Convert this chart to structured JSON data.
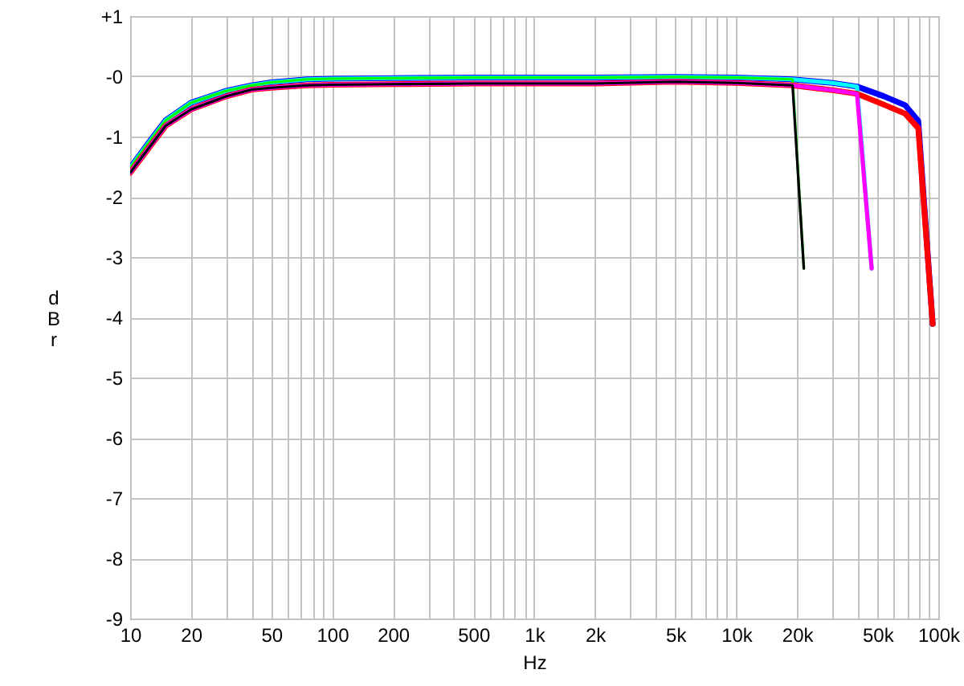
{
  "chart_data": {
    "type": "line",
    "xlabel": "Hz",
    "ylabel": "dBr",
    "log": "x",
    "grid": true,
    "xlim": [
      10,
      100000
    ],
    "ylim": [
      -9,
      1
    ],
    "xticks": [
      10,
      20,
      {
        "value": 30,
        "label": null
      },
      {
        "value": 40,
        "label": null
      },
      50,
      {
        "value": 60,
        "label": null
      },
      {
        "value": 70,
        "label": null
      },
      {
        "value": 80,
        "label": null
      },
      {
        "value": 90,
        "label": null
      },
      100,
      200,
      {
        "value": 300,
        "label": null
      },
      {
        "value": 400,
        "label": null
      },
      500,
      {
        "value": 600,
        "label": null
      },
      {
        "value": 700,
        "label": null
      },
      {
        "value": 800,
        "label": null
      },
      {
        "value": 900,
        "label": null
      },
      {
        "value": 1000,
        "label": "1k"
      },
      {
        "value": 2000,
        "label": "2k"
      },
      {
        "value": 3000,
        "label": null
      },
      {
        "value": 4000,
        "label": null
      },
      {
        "value": 5000,
        "label": "5k"
      },
      {
        "value": 6000,
        "label": null
      },
      {
        "value": 7000,
        "label": null
      },
      {
        "value": 8000,
        "label": null
      },
      {
        "value": 9000,
        "label": null
      },
      {
        "value": 10000,
        "label": "10k"
      },
      {
        "value": 20000,
        "label": "20k"
      },
      {
        "value": 30000,
        "label": null
      },
      {
        "value": 40000,
        "label": null
      },
      {
        "value": 50000,
        "label": "50k"
      },
      {
        "value": 60000,
        "label": null
      },
      {
        "value": 70000,
        "label": null
      },
      {
        "value": 80000,
        "label": null
      },
      {
        "value": 90000,
        "label": null
      },
      {
        "value": 100000,
        "label": "100k"
      }
    ],
    "yticks": [
      {
        "value": 1,
        "label": "+1"
      },
      {
        "value": 0,
        "label": "-0"
      },
      -1,
      -2,
      -3,
      -4,
      -5,
      -6,
      -7,
      -8,
      -9
    ],
    "series": [
      {
        "color": "#0000ff",
        "x": [
          10,
          12.5,
          15,
          20,
          30,
          40,
          50,
          75,
          100,
          200,
          500,
          1000,
          2000,
          5000,
          10000,
          19000,
          30000,
          39600,
          53700,
          68600,
          79600,
          93800
        ],
        "values": [
          -1.52,
          -1.08,
          -0.73,
          -0.44,
          -0.24,
          -0.15,
          -0.1,
          -0.05,
          -0.04,
          -0.03,
          -0.02,
          -0.02,
          -0.02,
          -0.01,
          -0.02,
          -0.05,
          -0.11,
          -0.17,
          -0.33,
          -0.48,
          -0.74,
          -4.11
        ]
      },
      {
        "color": "#00ffff",
        "x": [
          10,
          12.5,
          15,
          20,
          30,
          40,
          50,
          75,
          100,
          200,
          500,
          1000,
          2000,
          5000,
          10000,
          19000,
          30000,
          39600,
          46800
        ],
        "values": [
          -1.52,
          -1.08,
          -0.73,
          -0.44,
          -0.24,
          -0.15,
          -0.1,
          -0.05,
          -0.04,
          -0.03,
          -0.02,
          -0.02,
          -0.02,
          -0.01,
          -0.02,
          -0.05,
          -0.11,
          -0.17,
          -3.19
        ]
      },
      {
        "color": "#00ff00",
        "x": [
          10,
          12.5,
          15,
          20,
          30,
          40,
          50,
          75,
          100,
          200,
          500,
          1000,
          2000,
          5000,
          10000,
          19000,
          21600
        ],
        "values": [
          -1.52,
          -1.08,
          -0.73,
          -0.44,
          -0.24,
          -0.15,
          -0.1,
          -0.05,
          -0.04,
          -0.03,
          -0.02,
          -0.02,
          -0.02,
          -0.01,
          -0.02,
          -0.05,
          -3.19
        ]
      },
      {
        "color": "#ff0000",
        "x": [
          10,
          12.5,
          15,
          20,
          30,
          40,
          50,
          75,
          100,
          200,
          500,
          1000,
          2000,
          5000,
          10000,
          19000,
          30000,
          39600,
          53700,
          68600,
          79600,
          93800
        ],
        "values": [
          -1.6,
          -1.17,
          -0.82,
          -0.55,
          -0.33,
          -0.22,
          -0.19,
          -0.15,
          -0.14,
          -0.13,
          -0.12,
          -0.12,
          -0.12,
          -0.09,
          -0.11,
          -0.15,
          -0.23,
          -0.29,
          -0.47,
          -0.62,
          -0.86,
          -4.11
        ]
      },
      {
        "color": "#ff00ff",
        "x": [
          10,
          12.5,
          15,
          20,
          30,
          40,
          50,
          75,
          100,
          200,
          500,
          1000,
          2000,
          5000,
          10000,
          19000,
          30000,
          39600,
          46800
        ],
        "values": [
          -1.6,
          -1.17,
          -0.82,
          -0.55,
          -0.33,
          -0.22,
          -0.19,
          -0.15,
          -0.14,
          -0.13,
          -0.12,
          -0.12,
          -0.12,
          -0.09,
          -0.11,
          -0.15,
          -0.23,
          -0.29,
          -3.19
        ]
      },
      {
        "color": "#000000",
        "x": [
          10,
          12.5,
          15,
          20,
          30,
          40,
          50,
          75,
          100,
          200,
          500,
          1000,
          2000,
          5000,
          10000,
          19000,
          21600
        ],
        "values": [
          -1.6,
          -1.17,
          -0.82,
          -0.55,
          -0.33,
          -0.22,
          -0.19,
          -0.15,
          -0.14,
          -0.13,
          -0.12,
          -0.12,
          -0.12,
          -0.09,
          -0.11,
          -0.15,
          -3.19
        ]
      }
    ]
  }
}
